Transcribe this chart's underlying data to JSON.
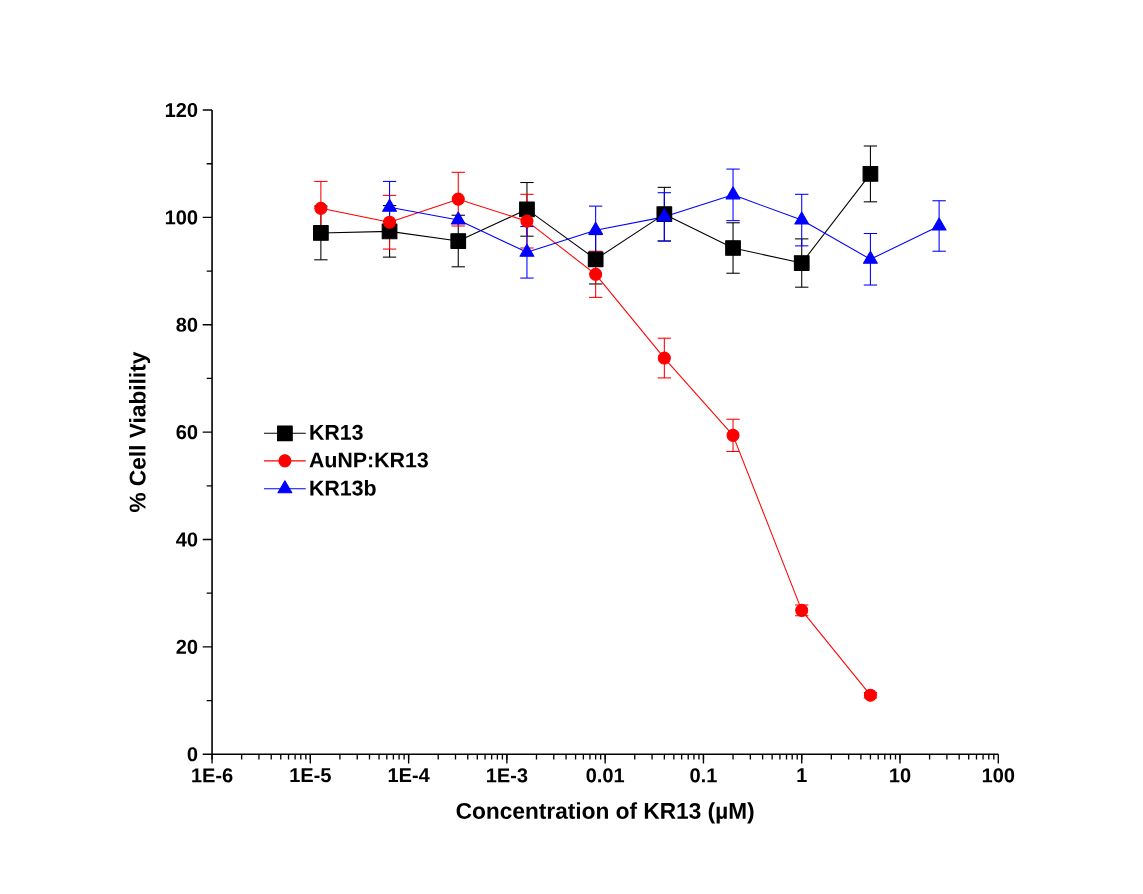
{
  "chart_data": {
    "type": "line",
    "xlabel": "Concentration of KR13 (µM)",
    "ylabel": "% Cell Viability",
    "log": "x",
    "xlim": [
      1e-06,
      100
    ],
    "ylim": [
      0,
      120
    ],
    "xticks": [
      {
        "value": 1e-06,
        "label": "1E-6"
      },
      {
        "value": 1e-05,
        "label": "1E-5"
      },
      {
        "value": 0.0001,
        "label": "1E-4"
      },
      {
        "value": 0.001,
        "label": "1E-3"
      },
      0.01,
      0.1,
      1,
      10,
      100
    ],
    "yticks": [
      0,
      20,
      40,
      60,
      80,
      100,
      120
    ],
    "legend": "left",
    "line_style": "solid",
    "series": [
      {
        "name": "KR13",
        "color": "#000000",
        "marker": "square",
        "x": [
          1.28e-05,
          6.4e-05,
          0.00032,
          0.0016,
          0.008,
          0.04,
          0.2,
          1,
          5
        ],
        "values": [
          97.1,
          97.4,
          95.6,
          101.5,
          92.2,
          100.6,
          94.3,
          91.5,
          108.1
        ],
        "errors": [
          5,
          4.8,
          4.8,
          5,
          4.6,
          5,
          4.7,
          4.5,
          5.2
        ]
      },
      {
        "name": "AuNP:KR13",
        "color": "#ff0000",
        "marker": "circle",
        "x": [
          1.28e-05,
          6.4e-05,
          0.00032,
          0.0016,
          0.008,
          0.04,
          0.2,
          1,
          5
        ],
        "values": [
          101.7,
          99.1,
          103.4,
          99.3,
          89.4,
          73.8,
          59.4,
          26.8,
          11.0
        ],
        "errors": [
          5,
          5,
          5,
          5,
          4.3,
          3.7,
          3,
          1,
          0.5
        ]
      },
      {
        "name": "KR13b",
        "color": "#0000ff",
        "marker": "triangle",
        "x": [
          6.4e-05,
          0.00032,
          0.0016,
          0.008,
          0.04,
          0.2,
          1,
          5,
          25
        ],
        "values": [
          101.9,
          99.5,
          93.5,
          97.6,
          100.1,
          104.2,
          99.5,
          92.2,
          98.4
        ],
        "errors": [
          4.8,
          null,
          4.8,
          4.5,
          4.5,
          4.8,
          4.8,
          4.8,
          4.7
        ]
      }
    ]
  }
}
